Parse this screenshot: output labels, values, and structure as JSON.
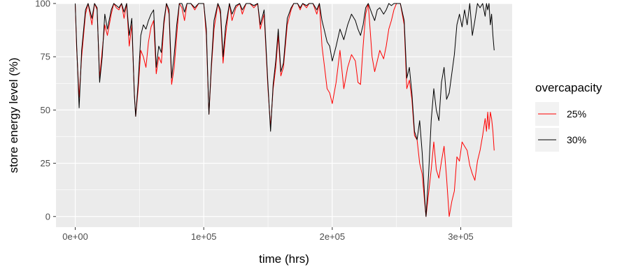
{
  "chart_data": {
    "type": "line",
    "title": "",
    "xlabel": "time (hrs)",
    "ylabel": "store energy level (%)",
    "xlim": [
      -15000,
      340000
    ],
    "ylim": [
      -5,
      100
    ],
    "x_ticks": [
      0,
      100000,
      200000,
      300000
    ],
    "x_tick_labels": [
      "0e+00",
      "1e+05",
      "2e+05",
      "3e+05"
    ],
    "y_ticks": [
      0,
      25,
      50,
      75,
      100
    ],
    "y_tick_labels": [
      "0",
      "25",
      "50",
      "75",
      "100"
    ],
    "grid": true,
    "legend": {
      "title": "overcapacity",
      "position": "right"
    },
    "series": [
      {
        "name": "25%",
        "color": "#ff0000",
        "points": [
          [
            0,
            100
          ],
          [
            1000,
            80
          ],
          [
            3000,
            56
          ],
          [
            5000,
            75
          ],
          [
            8000,
            95
          ],
          [
            10000,
            100
          ],
          [
            13000,
            90
          ],
          [
            15000,
            100
          ],
          [
            17000,
            97
          ],
          [
            19000,
            65
          ],
          [
            21000,
            78
          ],
          [
            23000,
            90
          ],
          [
            25000,
            85
          ],
          [
            28000,
            95
          ],
          [
            30000,
            100
          ],
          [
            32000,
            98
          ],
          [
            34000,
            97
          ],
          [
            36000,
            100
          ],
          [
            38000,
            93
          ],
          [
            40000,
            100
          ],
          [
            42000,
            80
          ],
          [
            44000,
            90
          ],
          [
            46000,
            58
          ],
          [
            47000,
            47
          ],
          [
            49000,
            60
          ],
          [
            51000,
            78
          ],
          [
            53000,
            75
          ],
          [
            55000,
            70
          ],
          [
            57000,
            82
          ],
          [
            59000,
            89
          ],
          [
            61000,
            92
          ],
          [
            63000,
            67
          ],
          [
            65000,
            75
          ],
          [
            67000,
            72
          ],
          [
            69000,
            90
          ],
          [
            71000,
            100
          ],
          [
            73000,
            95
          ],
          [
            75000,
            62
          ],
          [
            77000,
            70
          ],
          [
            79000,
            85
          ],
          [
            81000,
            100
          ],
          [
            83000,
            98
          ],
          [
            85000,
            92
          ],
          [
            87000,
            100
          ],
          [
            90000,
            100
          ],
          [
            93000,
            97
          ],
          [
            96000,
            100
          ],
          [
            100000,
            100
          ],
          [
            102000,
            85
          ],
          [
            104000,
            48
          ],
          [
            106000,
            70
          ],
          [
            108000,
            88
          ],
          [
            111000,
            100
          ],
          [
            113000,
            95
          ],
          [
            115000,
            72
          ],
          [
            117000,
            85
          ],
          [
            120000,
            100
          ],
          [
            122000,
            92
          ],
          [
            125000,
            98
          ],
          [
            128000,
            100
          ],
          [
            130000,
            95
          ],
          [
            133000,
            100
          ],
          [
            136000,
            100
          ],
          [
            139000,
            98
          ],
          [
            142000,
            100
          ],
          [
            144000,
            88
          ],
          [
            147000,
            95
          ],
          [
            150000,
            60
          ],
          [
            152000,
            42
          ],
          [
            154000,
            60
          ],
          [
            156000,
            70
          ],
          [
            158000,
            85
          ],
          [
            160000,
            66
          ],
          [
            162000,
            70
          ],
          [
            165000,
            90
          ],
          [
            168000,
            97
          ],
          [
            170000,
            100
          ],
          [
            173000,
            100
          ],
          [
            175000,
            97
          ],
          [
            177000,
            100
          ],
          [
            180000,
            98
          ],
          [
            182000,
            100
          ],
          [
            185000,
            100
          ],
          [
            188000,
            95
          ],
          [
            190000,
            100
          ],
          [
            192000,
            80
          ],
          [
            194000,
            70
          ],
          [
            196000,
            60
          ],
          [
            198000,
            58
          ],
          [
            200000,
            53
          ],
          [
            203000,
            63
          ],
          [
            206000,
            78
          ],
          [
            209000,
            60
          ],
          [
            212000,
            70
          ],
          [
            215000,
            76
          ],
          [
            218000,
            73
          ],
          [
            220000,
            63
          ],
          [
            222000,
            62
          ],
          [
            224000,
            80
          ],
          [
            226000,
            95
          ],
          [
            228000,
            100
          ],
          [
            231000,
            75
          ],
          [
            233000,
            68
          ],
          [
            235000,
            73
          ],
          [
            237000,
            78
          ],
          [
            240000,
            74
          ],
          [
            242000,
            80
          ],
          [
            244000,
            88
          ],
          [
            246000,
            92
          ],
          [
            248000,
            97
          ],
          [
            250000,
            100
          ],
          [
            253000,
            100
          ],
          [
            256000,
            90
          ],
          [
            258000,
            60
          ],
          [
            260000,
            64
          ],
          [
            262000,
            55
          ],
          [
            264000,
            38
          ],
          [
            266000,
            36
          ],
          [
            268000,
            25
          ],
          [
            270000,
            20
          ],
          [
            272000,
            6
          ],
          [
            273000,
            0
          ],
          [
            275000,
            11
          ],
          [
            277000,
            22
          ],
          [
            279000,
            35
          ],
          [
            281000,
            22
          ],
          [
            283000,
            18
          ],
          [
            285000,
            26
          ],
          [
            287000,
            33
          ],
          [
            289000,
            18
          ],
          [
            291000,
            0
          ],
          [
            293000,
            7
          ],
          [
            295000,
            12
          ],
          [
            297000,
            28
          ],
          [
            299000,
            26
          ],
          [
            301000,
            35
          ],
          [
            303000,
            33
          ],
          [
            305000,
            31
          ],
          [
            307000,
            24
          ],
          [
            309000,
            20
          ],
          [
            311000,
            17
          ],
          [
            313000,
            26
          ],
          [
            315000,
            31
          ],
          [
            317000,
            38
          ],
          [
            319000,
            46
          ],
          [
            320000,
            40
          ],
          [
            321000,
            49
          ],
          [
            322000,
            41
          ],
          [
            323000,
            49
          ],
          [
            324000,
            46
          ],
          [
            325000,
            40
          ],
          [
            326000,
            31
          ]
        ]
      },
      {
        "name": "30%",
        "color": "#000000",
        "points": [
          [
            0,
            100
          ],
          [
            1000,
            82
          ],
          [
            3000,
            51
          ],
          [
            5000,
            78
          ],
          [
            8000,
            97
          ],
          [
            10000,
            100
          ],
          [
            13000,
            93
          ],
          [
            15000,
            100
          ],
          [
            17000,
            98
          ],
          [
            19000,
            63
          ],
          [
            21000,
            75
          ],
          [
            23000,
            95
          ],
          [
            25000,
            88
          ],
          [
            28000,
            97
          ],
          [
            30000,
            100
          ],
          [
            32000,
            99
          ],
          [
            34000,
            98
          ],
          [
            36000,
            100
          ],
          [
            38000,
            96
          ],
          [
            40000,
            100
          ],
          [
            42000,
            85
          ],
          [
            44000,
            93
          ],
          [
            46000,
            57
          ],
          [
            47000,
            47
          ],
          [
            49000,
            63
          ],
          [
            51000,
            85
          ],
          [
            53000,
            90
          ],
          [
            55000,
            88
          ],
          [
            57000,
            92
          ],
          [
            59000,
            95
          ],
          [
            61000,
            97
          ],
          [
            63000,
            70
          ],
          [
            65000,
            80
          ],
          [
            67000,
            77
          ],
          [
            69000,
            92
          ],
          [
            71000,
            100
          ],
          [
            73000,
            97
          ],
          [
            75000,
            65
          ],
          [
            77000,
            76
          ],
          [
            79000,
            90
          ],
          [
            81000,
            100
          ],
          [
            83000,
            100
          ],
          [
            85000,
            96
          ],
          [
            87000,
            100
          ],
          [
            90000,
            100
          ],
          [
            93000,
            98
          ],
          [
            96000,
            100
          ],
          [
            100000,
            100
          ],
          [
            102000,
            88
          ],
          [
            104000,
            48
          ],
          [
            106000,
            72
          ],
          [
            108000,
            92
          ],
          [
            111000,
            100
          ],
          [
            113000,
            97
          ],
          [
            115000,
            75
          ],
          [
            117000,
            89
          ],
          [
            120000,
            100
          ],
          [
            122000,
            95
          ],
          [
            125000,
            99
          ],
          [
            128000,
            100
          ],
          [
            130000,
            97
          ],
          [
            133000,
            100
          ],
          [
            136000,
            100
          ],
          [
            139000,
            99
          ],
          [
            142000,
            100
          ],
          [
            144000,
            90
          ],
          [
            147000,
            97
          ],
          [
            150000,
            62
          ],
          [
            152000,
            40
          ],
          [
            154000,
            62
          ],
          [
            156000,
            73
          ],
          [
            158000,
            88
          ],
          [
            160000,
            68
          ],
          [
            162000,
            72
          ],
          [
            165000,
            93
          ],
          [
            168000,
            98
          ],
          [
            170000,
            100
          ],
          [
            173000,
            100
          ],
          [
            175000,
            98
          ],
          [
            177000,
            100
          ],
          [
            180000,
            99
          ],
          [
            182000,
            100
          ],
          [
            185000,
            100
          ],
          [
            188000,
            97
          ],
          [
            190000,
            100
          ],
          [
            192000,
            92
          ],
          [
            194000,
            87
          ],
          [
            196000,
            82
          ],
          [
            198000,
            80
          ],
          [
            200000,
            73
          ],
          [
            203000,
            80
          ],
          [
            206000,
            88
          ],
          [
            209000,
            83
          ],
          [
            212000,
            90
          ],
          [
            215000,
            95
          ],
          [
            218000,
            92
          ],
          [
            220000,
            88
          ],
          [
            222000,
            85
          ],
          [
            224000,
            90
          ],
          [
            226000,
            98
          ],
          [
            228000,
            100
          ],
          [
            231000,
            95
          ],
          [
            233000,
            92
          ],
          [
            235000,
            97
          ],
          [
            237000,
            98
          ],
          [
            240000,
            95
          ],
          [
            242000,
            97
          ],
          [
            244000,
            100
          ],
          [
            246000,
            99
          ],
          [
            248000,
            100
          ],
          [
            250000,
            100
          ],
          [
            253000,
            100
          ],
          [
            256000,
            92
          ],
          [
            258000,
            65
          ],
          [
            260000,
            70
          ],
          [
            262000,
            58
          ],
          [
            264000,
            40
          ],
          [
            266000,
            36
          ],
          [
            268000,
            45
          ],
          [
            270000,
            30
          ],
          [
            272000,
            8
          ],
          [
            273000,
            0
          ],
          [
            275000,
            20
          ],
          [
            277000,
            45
          ],
          [
            279000,
            60
          ],
          [
            281000,
            50
          ],
          [
            283000,
            45
          ],
          [
            285000,
            63
          ],
          [
            287000,
            70
          ],
          [
            289000,
            55
          ],
          [
            291000,
            58
          ],
          [
            293000,
            67
          ],
          [
            295000,
            76
          ],
          [
            297000,
            90
          ],
          [
            299000,
            95
          ],
          [
            301000,
            89
          ],
          [
            303000,
            97
          ],
          [
            305000,
            90
          ],
          [
            307000,
            100
          ],
          [
            309000,
            85
          ],
          [
            311000,
            92
          ],
          [
            313000,
            100
          ],
          [
            315000,
            98
          ],
          [
            317000,
            100
          ],
          [
            319000,
            94
          ],
          [
            320000,
            100
          ],
          [
            321000,
            97
          ],
          [
            322000,
            100
          ],
          [
            323000,
            90
          ],
          [
            324000,
            95
          ],
          [
            325000,
            85
          ],
          [
            326000,
            78
          ]
        ]
      }
    ]
  }
}
